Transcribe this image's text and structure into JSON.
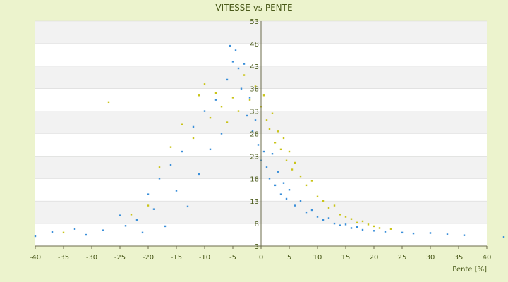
{
  "chart_data": {
    "type": "scatter",
    "title": "VITESSE vs PENTE",
    "xlabel": "Pente [%]",
    "ylabel": "",
    "xlim": [
      -40,
      40
    ],
    "ylim": [
      3,
      53
    ],
    "grid": true,
    "x_ticks": [
      "-40",
      "-35",
      "-30",
      "-25",
      "-20",
      "-15",
      "-10",
      "-5",
      "0",
      "5",
      "10",
      "15",
      "20",
      "25",
      "30",
      "35",
      "40"
    ],
    "y_ticks": [
      "53",
      "48",
      "43",
      "38",
      "33",
      "28",
      "23",
      "18",
      "13",
      "8",
      "3"
    ],
    "series": [
      {
        "color": "#3a8fd9",
        "points": [
          [
            -40,
            5.2
          ],
          [
            -37,
            6.1
          ],
          [
            -33,
            6.8
          ],
          [
            -31,
            5.5
          ],
          [
            -28,
            6.5
          ],
          [
            -25,
            9.8
          ],
          [
            -24,
            7.5
          ],
          [
            -22,
            8.8
          ],
          [
            -21,
            6.0
          ],
          [
            -20,
            14.5
          ],
          [
            -19,
            11.2
          ],
          [
            -18,
            18.0
          ],
          [
            -17,
            7.4
          ],
          [
            -16,
            21.0
          ],
          [
            -15,
            15.3
          ],
          [
            -14,
            24.0
          ],
          [
            -13,
            11.8
          ],
          [
            -12,
            29.5
          ],
          [
            -11,
            19.0
          ],
          [
            -10,
            33.0
          ],
          [
            -9,
            24.5
          ],
          [
            -8,
            35.5
          ],
          [
            -7,
            28.0
          ],
          [
            -6,
            40.0
          ],
          [
            -5.5,
            47.5
          ],
          [
            -5,
            44.0
          ],
          [
            -4.5,
            46.5
          ],
          [
            -4,
            42.5
          ],
          [
            -3.5,
            38.0
          ],
          [
            -3,
            43.5
          ],
          [
            -2.5,
            32.0
          ],
          [
            -2,
            36.0
          ],
          [
            -1.5,
            28.5
          ],
          [
            -1,
            31.0
          ],
          [
            -0.5,
            25.5
          ],
          [
            0,
            22.0
          ],
          [
            0.5,
            24.0
          ],
          [
            1,
            20.5
          ],
          [
            1.5,
            18.0
          ],
          [
            2,
            23.5
          ],
          [
            2.5,
            16.5
          ],
          [
            3,
            19.5
          ],
          [
            3.5,
            14.5
          ],
          [
            4,
            17.0
          ],
          [
            4.5,
            13.5
          ],
          [
            5,
            15.5
          ],
          [
            6,
            12.0
          ],
          [
            7,
            13.0
          ],
          [
            8,
            10.5
          ],
          [
            9,
            11.0
          ],
          [
            10,
            9.5
          ],
          [
            11,
            8.8
          ],
          [
            12,
            9.2
          ],
          [
            13,
            8.0
          ],
          [
            14,
            7.6
          ],
          [
            15,
            7.8
          ],
          [
            16,
            7.0
          ],
          [
            17,
            7.2
          ],
          [
            18,
            6.6
          ],
          [
            20,
            6.4
          ],
          [
            22,
            6.2
          ],
          [
            25,
            6.0
          ],
          [
            27,
            5.8
          ],
          [
            30,
            5.9
          ],
          [
            33,
            5.6
          ],
          [
            36,
            5.4
          ],
          [
            43,
            5.0
          ]
        ]
      },
      {
        "color": "#c9c419",
        "points": [
          [
            -35,
            6.0
          ],
          [
            -27,
            35.0
          ],
          [
            -23,
            10.0
          ],
          [
            -20,
            12.0
          ],
          [
            -18,
            20.5
          ],
          [
            -16,
            25.0
          ],
          [
            -14,
            30.0
          ],
          [
            -12,
            27.0
          ],
          [
            -11,
            36.5
          ],
          [
            -10,
            39.0
          ],
          [
            -9,
            31.5
          ],
          [
            -8,
            37.0
          ],
          [
            -7,
            34.0
          ],
          [
            -6,
            30.5
          ],
          [
            -5,
            36.0
          ],
          [
            -4,
            33.0
          ],
          [
            -3,
            41.0
          ],
          [
            -2,
            35.5
          ],
          [
            -1,
            38.5
          ],
          [
            0,
            34.0
          ],
          [
            0.5,
            36.5
          ],
          [
            1,
            31.0
          ],
          [
            1.5,
            29.0
          ],
          [
            2,
            32.5
          ],
          [
            2.5,
            26.0
          ],
          [
            3,
            28.5
          ],
          [
            3.5,
            24.5
          ],
          [
            4,
            27.0
          ],
          [
            4.5,
            22.0
          ],
          [
            5,
            24.0
          ],
          [
            5.5,
            20.0
          ],
          [
            6,
            21.5
          ],
          [
            7,
            18.5
          ],
          [
            8,
            16.5
          ],
          [
            9,
            17.5
          ],
          [
            10,
            14.0
          ],
          [
            11,
            13.0
          ],
          [
            12,
            11.5
          ],
          [
            13,
            12.0
          ],
          [
            14,
            10.0
          ],
          [
            15,
            9.5
          ],
          [
            16,
            9.0
          ],
          [
            17,
            8.2
          ],
          [
            18,
            8.5
          ],
          [
            19,
            7.8
          ],
          [
            20,
            7.4
          ],
          [
            21,
            7.0
          ],
          [
            23,
            6.8
          ]
        ]
      }
    ]
  }
}
